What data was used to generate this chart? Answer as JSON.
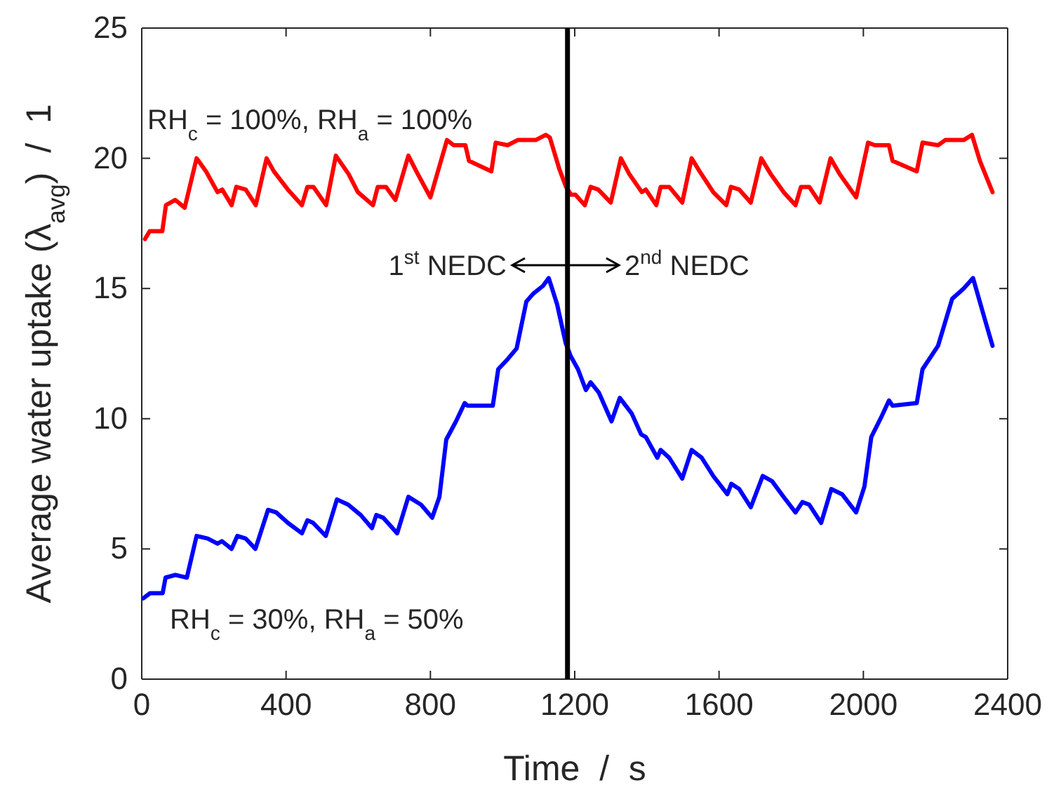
{
  "chart_data": {
    "type": "line",
    "xlabel": "Time  /  s",
    "ylabel": "Average water uptake (λ$_{avg}$)  /  1",
    "xlim": [
      0,
      2400
    ],
    "xticks": [
      0,
      400,
      800,
      1200,
      1600,
      2000,
      2400
    ],
    "ylim": [
      0,
      25
    ],
    "yticks": [
      0,
      5,
      10,
      15,
      20,
      25
    ],
    "grid": false,
    "annotations": [
      "RH$_{c}$ = 100%, RH$_{a}$ = 100%",
      "RH$_{c}$ = 30%, RH$_{a}$ = 50%",
      "1$^{st}$ NEDC",
      "2$^{nd}$ NEDC"
    ],
    "ref_lines": [
      {
        "axis": "x",
        "value": 1180,
        "color": "#000000"
      }
    ],
    "series": [
      {
        "color": "#ff0000",
        "x": [
          9,
          22,
          57,
          67,
          93,
          119,
          152,
          178,
          210,
          223,
          249,
          262,
          288,
          316,
          346,
          366,
          405,
          444,
          459,
          476,
          511,
          538,
          573,
          599,
          641,
          654,
          677,
          703,
          739,
          761,
          800,
          846,
          865,
          897,
          907,
          969,
          981,
          1014,
          1042,
          1092,
          1120,
          1131,
          1157,
          1176,
          1190,
          1202,
          1228,
          1244,
          1265,
          1300,
          1328,
          1351,
          1386,
          1397,
          1426,
          1438,
          1462,
          1498,
          1524,
          1546,
          1584,
          1620,
          1633,
          1656,
          1688,
          1717,
          1743,
          1779,
          1812,
          1827,
          1850,
          1879,
          1909,
          1934,
          1980,
          2013,
          2032,
          2071,
          2081,
          2148,
          2164,
          2207,
          2227,
          2278,
          2301,
          2323,
          2358
        ],
        "values": [
          16.9,
          17.2,
          17.2,
          18.2,
          18.4,
          18.1,
          20.0,
          19.5,
          18.7,
          18.8,
          18.2,
          18.9,
          18.8,
          18.2,
          20.0,
          19.5,
          18.8,
          18.2,
          18.9,
          18.9,
          18.2,
          20.1,
          19.4,
          18.7,
          18.2,
          18.9,
          18.9,
          18.4,
          20.1,
          19.5,
          18.5,
          20.7,
          20.5,
          20.5,
          19.9,
          19.5,
          20.6,
          20.5,
          20.7,
          20.7,
          20.9,
          20.8,
          19.6,
          18.9,
          18.6,
          18.6,
          18.2,
          18.9,
          18.8,
          18.3,
          20.0,
          19.4,
          18.7,
          18.8,
          18.2,
          18.9,
          18.9,
          18.3,
          20.0,
          19.5,
          18.7,
          18.2,
          18.9,
          18.8,
          18.3,
          20.0,
          19.4,
          18.7,
          18.2,
          18.9,
          18.9,
          18.3,
          20.0,
          19.4,
          18.5,
          20.6,
          20.5,
          20.5,
          19.9,
          19.5,
          20.6,
          20.5,
          20.7,
          20.7,
          20.9,
          19.9,
          18.7
        ]
      },
      {
        "color": "#0000ff",
        "x": [
          4,
          23,
          58,
          66,
          93,
          125,
          152,
          183,
          210,
          222,
          249,
          265,
          288,
          315,
          350,
          373,
          405,
          444,
          459,
          475,
          510,
          541,
          572,
          607,
          638,
          650,
          669,
          708,
          739,
          762,
          774,
          805,
          825,
          844,
          871,
          895,
          903,
          973,
          988,
          1015,
          1039,
          1066,
          1085,
          1112,
          1128,
          1151,
          1175,
          1189,
          1209,
          1231,
          1244,
          1267,
          1302,
          1325,
          1358,
          1384,
          1397,
          1429,
          1438,
          1462,
          1498,
          1524,
          1552,
          1584,
          1623,
          1634,
          1656,
          1688,
          1721,
          1747,
          1779,
          1812,
          1831,
          1850,
          1883,
          1911,
          1941,
          1980,
          2003,
          2022,
          2051,
          2071,
          2081,
          2148,
          2164,
          2207,
          2246,
          2278,
          2304,
          2337,
          2358
        ],
        "values": [
          3.1,
          3.3,
          3.3,
          3.9,
          4.0,
          3.9,
          5.5,
          5.4,
          5.2,
          5.3,
          5.0,
          5.5,
          5.4,
          5.0,
          6.5,
          6.4,
          6.0,
          5.6,
          6.1,
          6.0,
          5.5,
          6.9,
          6.7,
          6.3,
          5.8,
          6.3,
          6.2,
          5.6,
          7.0,
          6.8,
          6.7,
          6.2,
          7.0,
          9.2,
          9.9,
          10.6,
          10.5,
          10.5,
          11.9,
          12.3,
          12.7,
          14.5,
          14.8,
          15.1,
          15.4,
          14.4,
          12.9,
          12.4,
          11.9,
          11.1,
          11.4,
          11.0,
          9.9,
          10.8,
          10.2,
          9.4,
          9.3,
          8.5,
          8.8,
          8.5,
          7.7,
          8.8,
          8.5,
          7.8,
          7.1,
          7.5,
          7.3,
          6.6,
          7.8,
          7.6,
          7.0,
          6.4,
          6.8,
          6.7,
          6.0,
          7.3,
          7.1,
          6.4,
          7.4,
          9.3,
          10.1,
          10.7,
          10.5,
          10.6,
          11.9,
          12.8,
          14.6,
          15.0,
          15.4,
          13.8,
          12.8
        ]
      }
    ]
  }
}
